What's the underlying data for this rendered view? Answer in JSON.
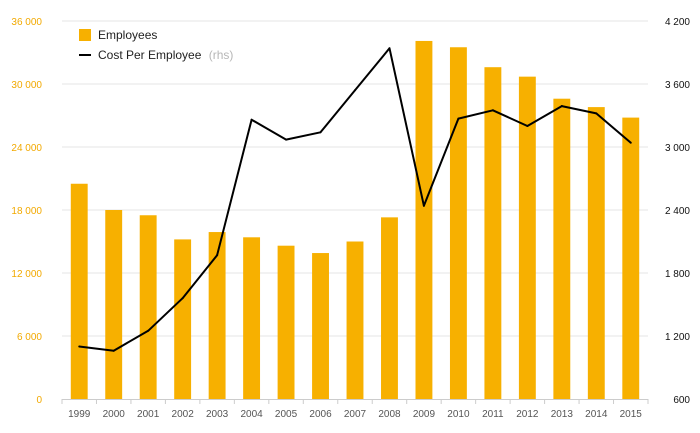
{
  "chart_data": {
    "type": "bar",
    "categories": [
      "1999",
      "2000",
      "2001",
      "2002",
      "2003",
      "2004",
      "2005",
      "2006",
      "2007",
      "2008",
      "2009",
      "2010",
      "2011",
      "2012",
      "2013",
      "2014",
      "2015"
    ],
    "series": [
      {
        "name": "Employees",
        "type": "bar",
        "axis": "left",
        "color": "#f7b000",
        "values": [
          20500,
          18000,
          17500,
          15200,
          15900,
          15400,
          14600,
          13900,
          15000,
          17300,
          34100,
          33500,
          31600,
          30700,
          28600,
          27800,
          26800
        ]
      },
      {
        "name": "Cost Per Employee",
        "name_suffix": "(rhs)",
        "type": "line",
        "axis": "right",
        "color": "#000000",
        "values": [
          1100,
          1060,
          1250,
          1560,
          1970,
          3260,
          3070,
          3140,
          3540,
          3940,
          2440,
          3270,
          3350,
          3200,
          3390,
          3320,
          3040
        ]
      }
    ],
    "y_left": {
      "min": 0,
      "max": 36000,
      "ticks": [
        "0",
        "6 000",
        "12 000",
        "18 000",
        "24 000",
        "30 000",
        "36 000"
      ],
      "color": "#f2a900"
    },
    "y_right": {
      "min": 600,
      "max": 4200,
      "ticks": [
        "600",
        "1 200",
        "1 800",
        "2 400",
        "3 000",
        "3 600",
        "4 200"
      ],
      "color": "#111111"
    },
    "grid": true,
    "legend_position": "top-left"
  }
}
